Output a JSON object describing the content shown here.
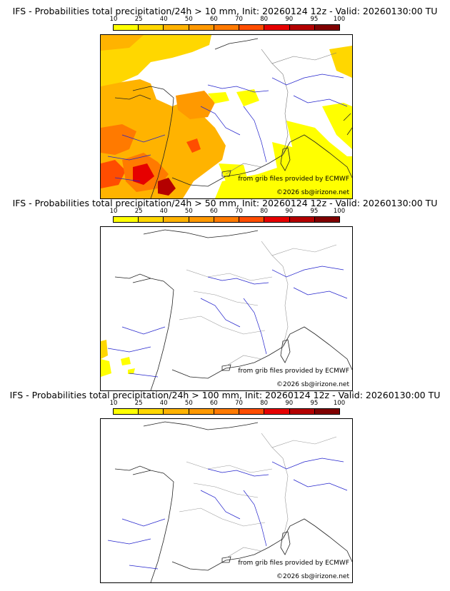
{
  "legend": {
    "labels": [
      "10",
      "25",
      "40",
      "50",
      "60",
      "70",
      "80",
      "90",
      "95",
      "100"
    ],
    "colors": [
      "#ffff00",
      "#ffd700",
      "#ffb300",
      "#ff9900",
      "#ff7a00",
      "#ff4d00",
      "#e60000",
      "#b40000",
      "#800000"
    ]
  },
  "panels": [
    {
      "title": "IFS - Probabilities total precipitation/24h > 10 mm, Init: 20260124 12z - Valid: 20260130:00 TU",
      "credit_source": "from grib files provided by ECMWF",
      "credit_copyright": "©2026 sb@irizone.net"
    },
    {
      "title": "IFS - Probabilities total precipitation/24h > 50 mm, Init: 20260124 12z - Valid: 20260130:00 TU",
      "credit_source": "from grib files provided by ECMWF",
      "credit_copyright": "©2026 sb@irizone.net"
    },
    {
      "title": "IFS - Probabilities total precipitation/24h > 100 mm, Init: 20260124 12z - Valid: 20260130:00 TU",
      "credit_source": "from grib files provided by ECMWF",
      "credit_copyright": "©2026 sb@irizone.net"
    }
  ]
}
